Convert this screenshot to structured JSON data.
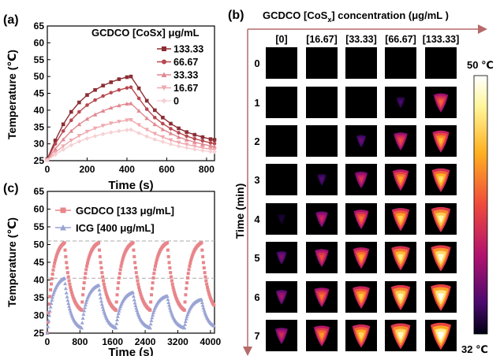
{
  "panels": {
    "a": {
      "label": "(a)",
      "chart_data": {
        "type": "line",
        "legend_title": "GCDCO [CoSx] μg/mL",
        "xlabel": "Time (s)",
        "ylabel": "Temperature (℃)",
        "xlim": [
          0,
          840
        ],
        "ylim": [
          25,
          65
        ],
        "xticks": [
          0,
          200,
          400,
          600,
          800
        ],
        "yticks": [
          25,
          30,
          35,
          40,
          45,
          50,
          55,
          60,
          65
        ],
        "legend_position": "top-right",
        "series": [
          {
            "name": "133.33",
            "color": "#8b2e34",
            "marker": "square",
            "x": [
              0,
              40,
              80,
              120,
              160,
              200,
              240,
              280,
              320,
              360,
              400,
              420,
              460,
              500,
              540,
              580,
              620,
              660,
              700,
              740,
              780,
              820,
              840
            ],
            "y": [
              25.5,
              31.0,
              35.8,
              39.5,
              42.3,
              44.5,
              46.0,
              47.3,
              48.3,
              49.2,
              49.8,
              50.0,
              46.5,
              42.8,
              40.0,
              37.8,
              36.0,
              34.6,
              33.5,
              32.7,
              32.0,
              31.4,
              31.2
            ]
          },
          {
            "name": "66.67",
            "color": "#b8484f",
            "marker": "circle",
            "x": [
              0,
              40,
              80,
              120,
              160,
              200,
              240,
              280,
              320,
              360,
              400,
              420,
              460,
              500,
              540,
              580,
              620,
              660,
              700,
              740,
              780,
              820,
              840
            ],
            "y": [
              25.4,
              30.0,
              33.8,
              37.0,
              39.5,
              41.5,
              43.0,
              44.2,
              45.2,
              46.0,
              46.6,
              46.8,
              43.5,
              40.3,
              37.8,
              36.0,
              34.5,
              33.3,
              32.3,
              31.5,
              30.9,
              30.3,
              30.1
            ]
          },
          {
            "name": "33.33",
            "color": "#e08890",
            "marker": "triangle-up",
            "x": [
              0,
              40,
              80,
              120,
              160,
              200,
              240,
              280,
              320,
              360,
              400,
              420,
              460,
              500,
              540,
              580,
              620,
              660,
              700,
              740,
              780,
              820,
              840
            ],
            "y": [
              25.3,
              28.5,
              31.3,
              33.8,
              35.8,
              37.4,
              38.7,
              39.8,
              40.7,
              41.4,
              41.9,
              42.0,
              39.8,
              37.6,
              35.8,
              34.3,
              33.1,
              32.0,
              31.2,
              30.5,
              29.9,
              29.4,
              29.2
            ]
          },
          {
            "name": "16.67",
            "color": "#f0a8ae",
            "marker": "triangle-down",
            "x": [
              0,
              40,
              80,
              120,
              160,
              200,
              240,
              280,
              320,
              360,
              400,
              420,
              460,
              500,
              540,
              580,
              620,
              660,
              700,
              740,
              780,
              820,
              840
            ],
            "y": [
              25.2,
              27.4,
              29.3,
              31.0,
              32.4,
              33.6,
              34.6,
              35.4,
              36.1,
              36.6,
              37.0,
              37.1,
              35.6,
              34.2,
              33.0,
              32.0,
              31.1,
              30.4,
              29.8,
              29.3,
              28.8,
              28.4,
              28.3
            ]
          },
          {
            "name": "0",
            "color": "#f7d0d3",
            "marker": "diamond",
            "x": [
              0,
              40,
              80,
              120,
              160,
              200,
              240,
              280,
              320,
              360,
              400,
              420,
              460,
              500,
              540,
              580,
              620,
              660,
              700,
              740,
              780,
              820,
              840
            ],
            "y": [
              25.1,
              26.8,
              28.3,
              29.6,
              30.7,
              31.6,
              32.3,
              32.9,
              33.4,
              33.8,
              34.1,
              34.2,
              33.2,
              32.2,
              31.3,
              30.6,
              29.9,
              29.3,
              28.8,
              28.4,
              28.0,
              27.7,
              27.6
            ]
          }
        ]
      }
    },
    "c": {
      "label": "(c)",
      "chart_data": {
        "type": "line",
        "xlabel": "Time (s)",
        "ylabel": "Temperature (℃)",
        "xlim": [
          0,
          4100
        ],
        "ylim": [
          25,
          65
        ],
        "xticks": [
          0,
          800,
          1600,
          2400,
          3200,
          4000
        ],
        "yticks": [
          25,
          30,
          35,
          40,
          45,
          50,
          55,
          60,
          65
        ],
        "legend_position": "top-left",
        "reference_lines_y": [
          51,
          40.5
        ],
        "series": [
          {
            "name": "GCDCO [133 μg/mL]",
            "color": "#e8858a",
            "marker": "square",
            "cycles": 5,
            "period": 840,
            "heat_seconds": 420,
            "start": 25,
            "peak": 50.5,
            "cool_to": 31.5
          },
          {
            "name": "ICG [400 μg/mL]",
            "color": "#9aa4d4",
            "marker": "triangle-up",
            "cycles": 5,
            "period": 840,
            "heat_seconds": 420,
            "start": 25,
            "peaks": [
              40.5,
              38.5,
              36.5,
              35.5,
              34.5
            ],
            "cool_to": 26.5
          }
        ]
      }
    },
    "b": {
      "label": "(b)",
      "title_prefix": "GCDCO [CoS",
      "title_sub": "x",
      "title_suffix": "] concentration (μg/mL )",
      "columns": [
        "[0]",
        "[16.67]",
        "[33.33]",
        "[66.67]",
        "[133.33]"
      ],
      "rows": [
        "0",
        "1",
        "2",
        "3",
        "4",
        "5",
        "6",
        "7"
      ],
      "ylabel": "Time (min)",
      "colorbar": {
        "max_label": "50 ℃",
        "min_label": "32 ℃",
        "max": 50,
        "min": 32
      },
      "intensity": [
        [
          0.0,
          0.0,
          0.0,
          0.0,
          0.0
        ],
        [
          0.0,
          0.0,
          0.0,
          0.12,
          0.55
        ],
        [
          0.0,
          0.0,
          0.18,
          0.5,
          0.72
        ],
        [
          0.0,
          0.14,
          0.42,
          0.68,
          0.82
        ],
        [
          0.05,
          0.38,
          0.58,
          0.78,
          0.9
        ],
        [
          0.22,
          0.5,
          0.68,
          0.85,
          0.95
        ],
        [
          0.3,
          0.58,
          0.75,
          0.9,
          0.98
        ],
        [
          0.4,
          0.65,
          0.8,
          0.93,
          1.0
        ]
      ]
    }
  }
}
